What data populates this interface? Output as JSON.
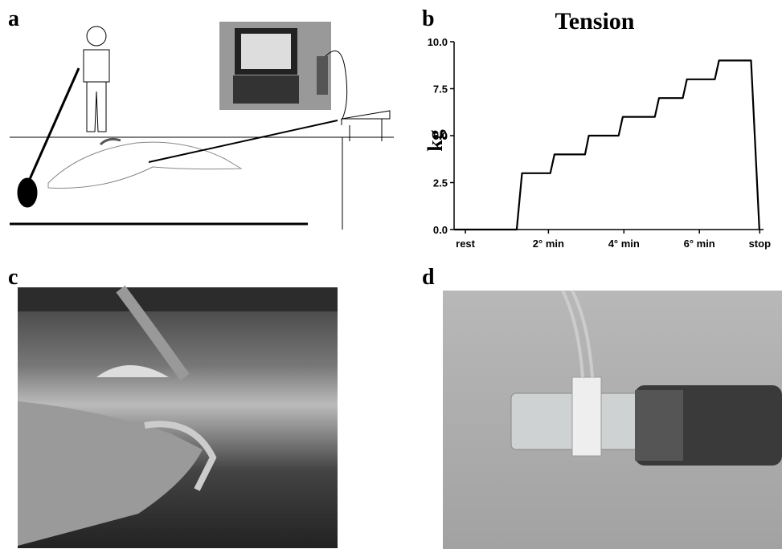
{
  "panel_labels": [
    "a",
    "b",
    "c",
    "d"
  ],
  "chart_data": {
    "type": "line",
    "title": "Tension",
    "y_label": "kg",
    "x": [
      0,
      1.66,
      1.8,
      2.55,
      2.66,
      3.47,
      3.57,
      4.36,
      4.47,
      5.32,
      5.43,
      6.06,
      6.17,
      6.91,
      7.02,
      7.87,
      8.09
    ],
    "values": [
      0,
      0,
      3,
      3,
      4,
      4,
      5,
      5,
      6,
      6,
      7,
      7,
      8,
      8,
      9,
      9,
      0
    ],
    "color": "#000000",
    "xlim": [
      0,
      8.2
    ],
    "xticks": [
      {
        "value": 0.3,
        "label": "rest"
      },
      {
        "value": 2.5,
        "label": "2° min"
      },
      {
        "value": 4.5,
        "label": "4° min"
      },
      {
        "value": 6.5,
        "label": "6° min"
      },
      {
        "value": 8.1,
        "label": "stop"
      }
    ],
    "ylim": [
      0,
      10
    ],
    "yticks": [
      {
        "value": 0,
        "label": "0.0"
      },
      {
        "value": 2.5,
        "label": "2.5"
      },
      {
        "value": 5,
        "label": "5.0"
      },
      {
        "value": 7.5,
        "label": "7.5"
      },
      {
        "value": 10,
        "label": "10.0"
      }
    ]
  }
}
